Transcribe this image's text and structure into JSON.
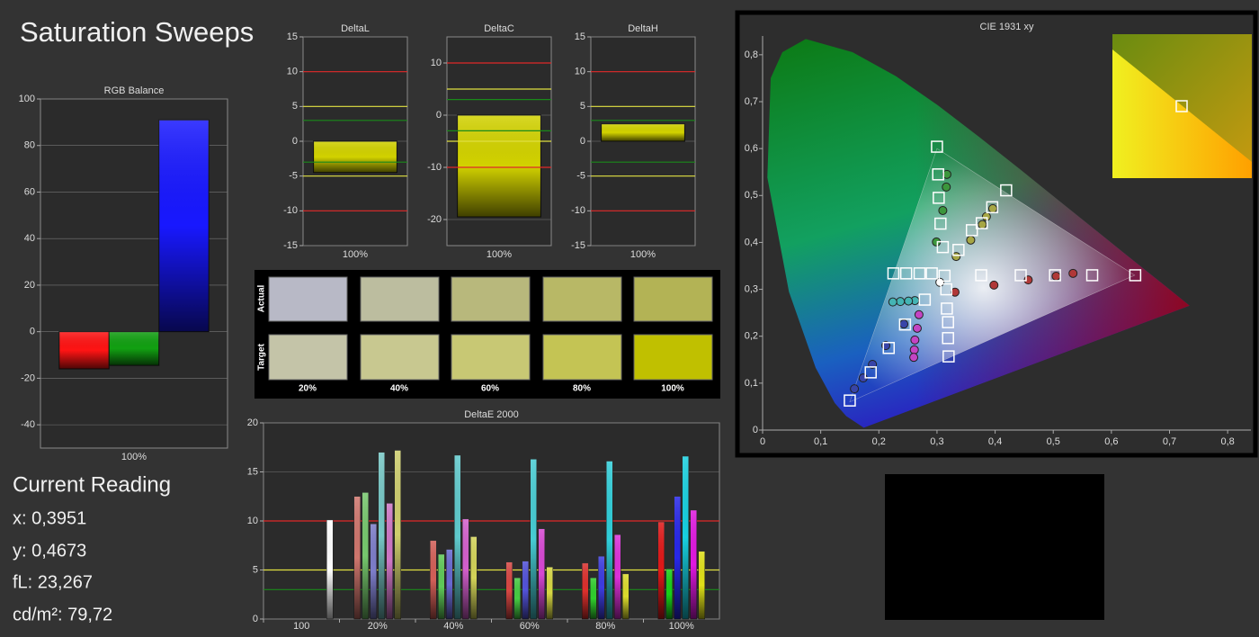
{
  "title": "Saturation Sweeps",
  "chart_data": [
    {
      "type": "bar",
      "title": "RGB Balance",
      "categories": [
        "100%"
      ],
      "series": [
        {
          "color": "#ff1414",
          "values": [
            -16
          ]
        },
        {
          "color": "#12a012",
          "values": [
            -14.5
          ]
        },
        {
          "color": "#1818ff",
          "values": [
            91
          ]
        }
      ],
      "ylim": [
        -50,
        100
      ],
      "yticks": [
        -40,
        -20,
        0,
        20,
        40,
        60,
        80,
        100
      ],
      "grid": true
    },
    {
      "type": "bar",
      "title": "DeltaL",
      "categories": [
        "100%"
      ],
      "values": [
        -4.5
      ],
      "color": "#d2d200",
      "ylim": [
        -15,
        15
      ],
      "yticks": [
        -15,
        -10,
        -5,
        0,
        5,
        10,
        15
      ],
      "grid": true,
      "reference_lines": [
        {
          "value": 10,
          "color": "#e02828"
        },
        {
          "value": -10,
          "color": "#e02828"
        },
        {
          "value": 5,
          "color": "#e0e040"
        },
        {
          "value": -5,
          "color": "#e0e040"
        },
        {
          "value": 3,
          "color": "#1a8a1a"
        },
        {
          "value": -3,
          "color": "#1a8a1a"
        }
      ]
    },
    {
      "type": "bar",
      "title": "DeltaC",
      "categories": [
        "100%"
      ],
      "values": [
        -19.5
      ],
      "color": "#d2d200",
      "ylim": [
        -25,
        15
      ],
      "yticks": [
        -20,
        -10,
        0,
        10
      ],
      "grid": true,
      "reference_lines": [
        {
          "value": 10,
          "color": "#e02828"
        },
        {
          "value": -10,
          "color": "#e02828"
        },
        {
          "value": 5,
          "color": "#e0e040"
        },
        {
          "value": -5,
          "color": "#e0e040"
        },
        {
          "value": 3,
          "color": "#1a8a1a"
        },
        {
          "value": -3,
          "color": "#1a8a1a"
        }
      ]
    },
    {
      "type": "bar",
      "title": "DeltaH",
      "categories": [
        "100%"
      ],
      "values": [
        2.5
      ],
      "color": "#d2d200",
      "ylim": [
        -15,
        15
      ],
      "yticks": [
        -15,
        -10,
        -5,
        0,
        5,
        10,
        15
      ],
      "grid": true,
      "reference_lines": [
        {
          "value": 10,
          "color": "#e02828"
        },
        {
          "value": -10,
          "color": "#e02828"
        },
        {
          "value": 5,
          "color": "#e0e040"
        },
        {
          "value": -5,
          "color": "#e0e040"
        },
        {
          "value": 3,
          "color": "#1a8a1a"
        },
        {
          "value": -3,
          "color": "#1a8a1a"
        }
      ]
    },
    {
      "type": "grouped-bar",
      "title": "DeltaE 2000",
      "categories": [
        "100",
        "20%",
        "40%",
        "60%",
        "80%",
        "100%"
      ],
      "series": [
        {
          "color": "#e01818",
          "values": [
            null,
            12.5,
            8,
            5.8,
            5.7,
            9.9
          ]
        },
        {
          "color": "#18d018",
          "values": [
            null,
            12.9,
            6.6,
            4.2,
            4.2,
            5.1
          ]
        },
        {
          "color": "#2828e8",
          "values": [
            null,
            9.7,
            7.1,
            5.9,
            6.4,
            12.5
          ]
        },
        {
          "color": "#18d0e0",
          "values": [
            null,
            17,
            16.7,
            16.3,
            16.1,
            16.6
          ]
        },
        {
          "color": "#e018e0",
          "values": [
            null,
            11.8,
            10.2,
            9.2,
            8.6,
            11.1
          ]
        },
        {
          "color": "#e0e018",
          "values": [
            null,
            17.2,
            8.4,
            5.3,
            4.6,
            6.9
          ]
        },
        {
          "color": "#ffffff",
          "values": [
            10.1,
            null,
            null,
            null,
            null,
            null
          ]
        }
      ],
      "ylim": [
        0,
        20
      ],
      "yticks": [
        0,
        5,
        10,
        15,
        20
      ],
      "grid": true,
      "reference_lines": [
        {
          "value": 10,
          "color": "#e02828"
        },
        {
          "value": 5,
          "color": "#e0e040"
        },
        {
          "value": 3,
          "color": "#1a8a1a"
        }
      ]
    },
    {
      "type": "scatter",
      "title": "CIE 1931 xy",
      "xlim": [
        0,
        0.84
      ],
      "ylim": [
        0,
        0.84
      ],
      "xticks": [
        0,
        {
          "value": 0.1,
          "label": "0,1"
        },
        {
          "value": 0.2,
          "label": "0,2"
        },
        {
          "value": 0.3,
          "label": "0,3"
        },
        {
          "value": 0.4,
          "label": "0,4"
        },
        {
          "value": 0.5,
          "label": "0,5"
        },
        {
          "value": 0.6,
          "label": "0,6"
        },
        {
          "value": 0.7,
          "label": "0,7"
        },
        {
          "value": 0.8,
          "label": "0,8"
        }
      ],
      "yticks": [
        0,
        {
          "value": 0.1,
          "label": "0,1"
        },
        {
          "value": 0.2,
          "label": "0,2"
        },
        {
          "value": 0.3,
          "label": "0,3"
        },
        {
          "value": 0.4,
          "label": "0,4"
        },
        {
          "value": 0.5,
          "label": "0,5"
        },
        {
          "value": 0.6,
          "label": "0,6"
        },
        {
          "value": 0.7,
          "label": "0,7"
        },
        {
          "value": 0.8,
          "label": "0,8"
        }
      ],
      "gamut": {
        "x": [
          0.64,
          0.3,
          0.15
        ],
        "y": [
          0.33,
          0.6,
          0.06
        ]
      },
      "series": [
        {
          "marker": "circle",
          "color": "#ffffff",
          "x": [
            0.305
          ],
          "y": [
            0.315
          ]
        },
        {
          "marker": "circle",
          "color": "#b03838",
          "x": [
            0.331,
            0.398,
            0.457,
            0.505,
            0.534
          ],
          "y": [
            0.294,
            0.309,
            0.32,
            0.328,
            0.334
          ]
        },
        {
          "marker": "circle",
          "color": "#3c963c",
          "x": [
            0.299,
            0.31,
            0.316,
            0.317
          ],
          "y": [
            0.401,
            0.468,
            0.518,
            0.545
          ]
        },
        {
          "marker": "circle",
          "color": "#3844a8",
          "x": [
            0.243,
            0.212,
            0.189,
            0.173,
            0.158
          ],
          "y": [
            0.226,
            0.18,
            0.14,
            0.111,
            0.088
          ]
        },
        {
          "marker": "circle",
          "color": "#44b4b4",
          "x": [
            0.262,
            0.251,
            0.237,
            0.224
          ],
          "y": [
            0.276,
            0.275,
            0.274,
            0.273
          ]
        },
        {
          "marker": "circle",
          "color": "#c444c4",
          "x": [
            0.269,
            0.266,
            0.262,
            0.261,
            0.26
          ],
          "y": [
            0.246,
            0.217,
            0.192,
            0.171,
            0.155
          ]
        },
        {
          "marker": "circle",
          "color": "#a6a644",
          "x": [
            0.333,
            0.358,
            0.378,
            0.385,
            0.396
          ],
          "y": [
            0.37,
            0.405,
            0.438,
            0.455,
            0.472
          ]
        },
        {
          "marker": "square",
          "color": "#ffffff",
          "x": [
            0.313,
            0.376,
            0.444,
            0.503,
            0.567,
            0.641,
            0.31,
            0.306,
            0.303,
            0.302,
            0.3,
            0.279,
            0.245,
            0.217,
            0.186,
            0.15,
            0.291,
            0.27,
            0.247,
            0.225,
            0.316,
            0.317,
            0.319,
            0.319,
            0.32,
            0.337,
            0.36,
            0.377,
            0.395,
            0.419
          ],
          "y": [
            0.329,
            0.33,
            0.33,
            0.33,
            0.33,
            0.33,
            0.39,
            0.44,
            0.495,
            0.545,
            0.604,
            0.278,
            0.225,
            0.175,
            0.123,
            0.063,
            0.334,
            0.334,
            0.334,
            0.334,
            0.3,
            0.259,
            0.23,
            0.196,
            0.157,
            0.384,
            0.426,
            0.441,
            0.475,
            0.511
          ]
        }
      ]
    }
  ],
  "swatches": {
    "row_labels": [
      "Actual",
      "Target"
    ],
    "labels": [
      "20%",
      "40%",
      "60%",
      "80%",
      "100%"
    ],
    "actual": [
      "#b8b9c6",
      "#bcbd9f",
      "#b8b87c",
      "#b8b866",
      "#b3b355"
    ],
    "target": [
      "#c4c4a8",
      "#c8c890",
      "#c8c874",
      "#c4c454",
      "#c0c000"
    ]
  },
  "current_reading": {
    "heading": "Current Reading",
    "lines": [
      "x: 0,3951",
      "y: 0,4673",
      "fL: 23,267",
      "cd/m²: 79,72"
    ]
  }
}
